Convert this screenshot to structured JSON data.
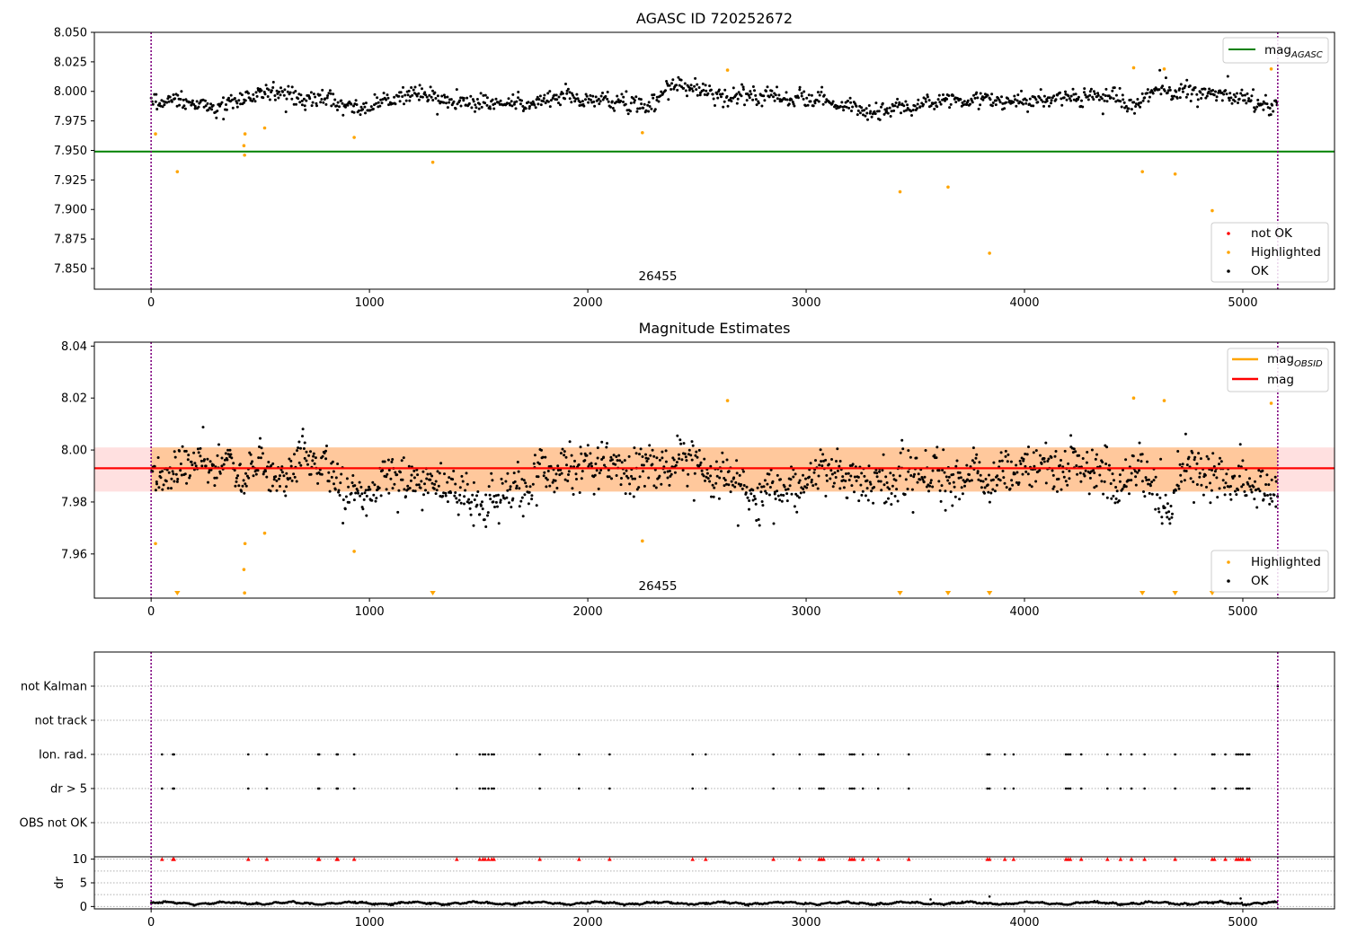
{
  "chart_data": [
    {
      "type": "scatter",
      "title": "AGASC ID 720252672",
      "xlim": [
        -260,
        5420
      ],
      "ylim": [
        7.8325,
        8.05
      ],
      "xticks": [
        0,
        1000,
        2000,
        3000,
        4000,
        5000
      ],
      "yticks": [
        7.85,
        7.875,
        7.9,
        7.925,
        7.95,
        7.975,
        8.0,
        8.025,
        8.05
      ],
      "ytick_labels": [
        "7.850",
        "7.875",
        "7.900",
        "7.925",
        "7.950",
        "7.975",
        "8.000",
        "8.025",
        "8.050"
      ],
      "ok_band": {
        "x_start": 0,
        "x_end": 5160,
        "center": 7.993,
        "amplitude": 0.011,
        "count": 1200
      },
      "lines": [
        {
          "name": "mag",
          "subscript": "AGASC",
          "y": 7.949,
          "x_start": -260,
          "x_end": 5420,
          "color": "#008000"
        }
      ],
      "vlines": [
        0,
        5160
      ],
      "highlighted": [
        [
          20,
          7.964
        ],
        [
          120,
          7.932
        ],
        [
          425,
          7.954
        ],
        [
          428,
          7.946
        ],
        [
          430,
          7.964
        ],
        [
          520,
          7.969
        ],
        [
          930,
          7.961
        ],
        [
          1290,
          7.94
        ],
        [
          2250,
          7.965
        ],
        [
          2640,
          8.018
        ],
        [
          3430,
          7.915
        ],
        [
          3650,
          7.919
        ],
        [
          3840,
          7.863
        ],
        [
          4500,
          8.02
        ],
        [
          4540,
          7.932
        ],
        [
          4640,
          8.019
        ],
        [
          4690,
          7.93
        ],
        [
          4860,
          7.899
        ],
        [
          5130,
          8.019
        ]
      ],
      "obsid_label": "26455",
      "legend_top": [
        {
          "label": "mag",
          "subscript": "AGASC",
          "color": "#008000"
        }
      ],
      "legend_bottom": [
        {
          "label": "not OK",
          "color": "#ff0000"
        },
        {
          "label": "Highlighted",
          "color": "#ffa500"
        },
        {
          "label": "OK",
          "color": "#000000"
        }
      ]
    },
    {
      "type": "scatter",
      "title": "Magnitude Estimates",
      "xlim": [
        -260,
        5420
      ],
      "ylim": [
        7.943,
        8.0415
      ],
      "xticks": [
        0,
        1000,
        2000,
        3000,
        4000,
        5000
      ],
      "yticks": [
        7.96,
        7.98,
        8.0,
        8.02,
        8.04
      ],
      "ytick_labels": [
        "7.96",
        "7.98",
        "8.00",
        "8.02",
        "8.04"
      ],
      "ok_band": {
        "x_start": 0,
        "x_end": 5160,
        "center": 7.991,
        "amplitude": 0.013,
        "count": 1400
      },
      "bands": [
        {
          "y_low": 7.984,
          "y_high": 8.001,
          "x_start": 0,
          "x_end": 5160,
          "color": "#ffa500",
          "opacity": 0.3
        },
        {
          "y_low": 7.984,
          "y_high": 8.001,
          "x_start": -260,
          "x_end": 5420,
          "color": "#ff0000",
          "opacity": 0.12
        }
      ],
      "lines": [
        {
          "name": "mag",
          "subscript": "OBSID",
          "y": 7.993,
          "x_start": 0,
          "x_end": 5160,
          "color": "#ffa500"
        },
        {
          "name": "mag",
          "y": 7.993,
          "x_start": -260,
          "x_end": 5420,
          "color": "#ff0000"
        }
      ],
      "vlines": [
        0,
        5160
      ],
      "highlighted": [
        [
          20,
          7.964
        ],
        [
          425,
          7.954
        ],
        [
          428,
          7.945
        ],
        [
          430,
          7.964
        ],
        [
          520,
          7.968
        ],
        [
          930,
          7.961
        ],
        [
          2250,
          7.965
        ],
        [
          2640,
          8.019
        ],
        [
          4500,
          8.02
        ],
        [
          4640,
          8.019
        ],
        [
          5130,
          8.018
        ]
      ],
      "below_range_x": [
        120,
        1290,
        3430,
        3650,
        3840,
        4540,
        4690,
        4860
      ],
      "obsid_label": "26455",
      "legend_top": [
        {
          "label": "mag",
          "subscript": "OBSID",
          "color": "#ffa500"
        },
        {
          "label": "mag",
          "color": "#ff0000"
        }
      ],
      "legend_bottom": [
        {
          "label": "Highlighted",
          "color": "#ffa500"
        },
        {
          "label": "OK",
          "color": "#000000"
        }
      ]
    },
    {
      "type": "scatter",
      "title": "",
      "xlim": [
        -260,
        5420
      ],
      "categories": [
        "not Kalman",
        "not track",
        "Ion. rad.",
        "dr > 5",
        "OBS not OK"
      ],
      "flag_x": [
        50,
        100,
        105,
        445,
        530,
        765,
        770,
        850,
        855,
        930,
        1400,
        1505,
        1520,
        1530,
        1545,
        1560,
        1570,
        1780,
        1960,
        2100,
        2480,
        2540,
        2850,
        2970,
        3060,
        3070,
        3080,
        3200,
        3210,
        3220,
        3260,
        3330,
        3470,
        3830,
        3840,
        3910,
        3950,
        4190,
        4200,
        4210,
        4260,
        4380,
        4440,
        4490,
        4550,
        4690,
        4860,
        4870,
        4920,
        4970,
        4980,
        4990,
        5000,
        5020,
        5030
      ],
      "not_kalman_x": [
        5160
      ],
      "vlines": [
        0,
        5160
      ]
    },
    {
      "type": "scatter",
      "title": "",
      "ylabel": "dr",
      "xlim": [
        -260,
        5420
      ],
      "ylim": [
        -0.5,
        10.5
      ],
      "xticks": [
        0,
        1000,
        2000,
        3000,
        4000,
        5000
      ],
      "xtick_labels": [
        "0",
        "1000",
        "2000",
        "3000",
        "4000",
        "5000"
      ],
      "yticks": [
        0,
        5,
        10
      ],
      "ytick_labels": [
        "0",
        "5",
        "10"
      ],
      "dr_marker_y": 10,
      "dr_trace": {
        "x_start": 0,
        "x_end": 5160,
        "base": 0.7,
        "amplitude": 0.35
      },
      "dr_outliers": [
        [
          3840,
          2.1
        ],
        [
          3570,
          1.5
        ],
        [
          4990,
          1.7
        ]
      ],
      "vlines": [
        0,
        5160
      ]
    }
  ]
}
